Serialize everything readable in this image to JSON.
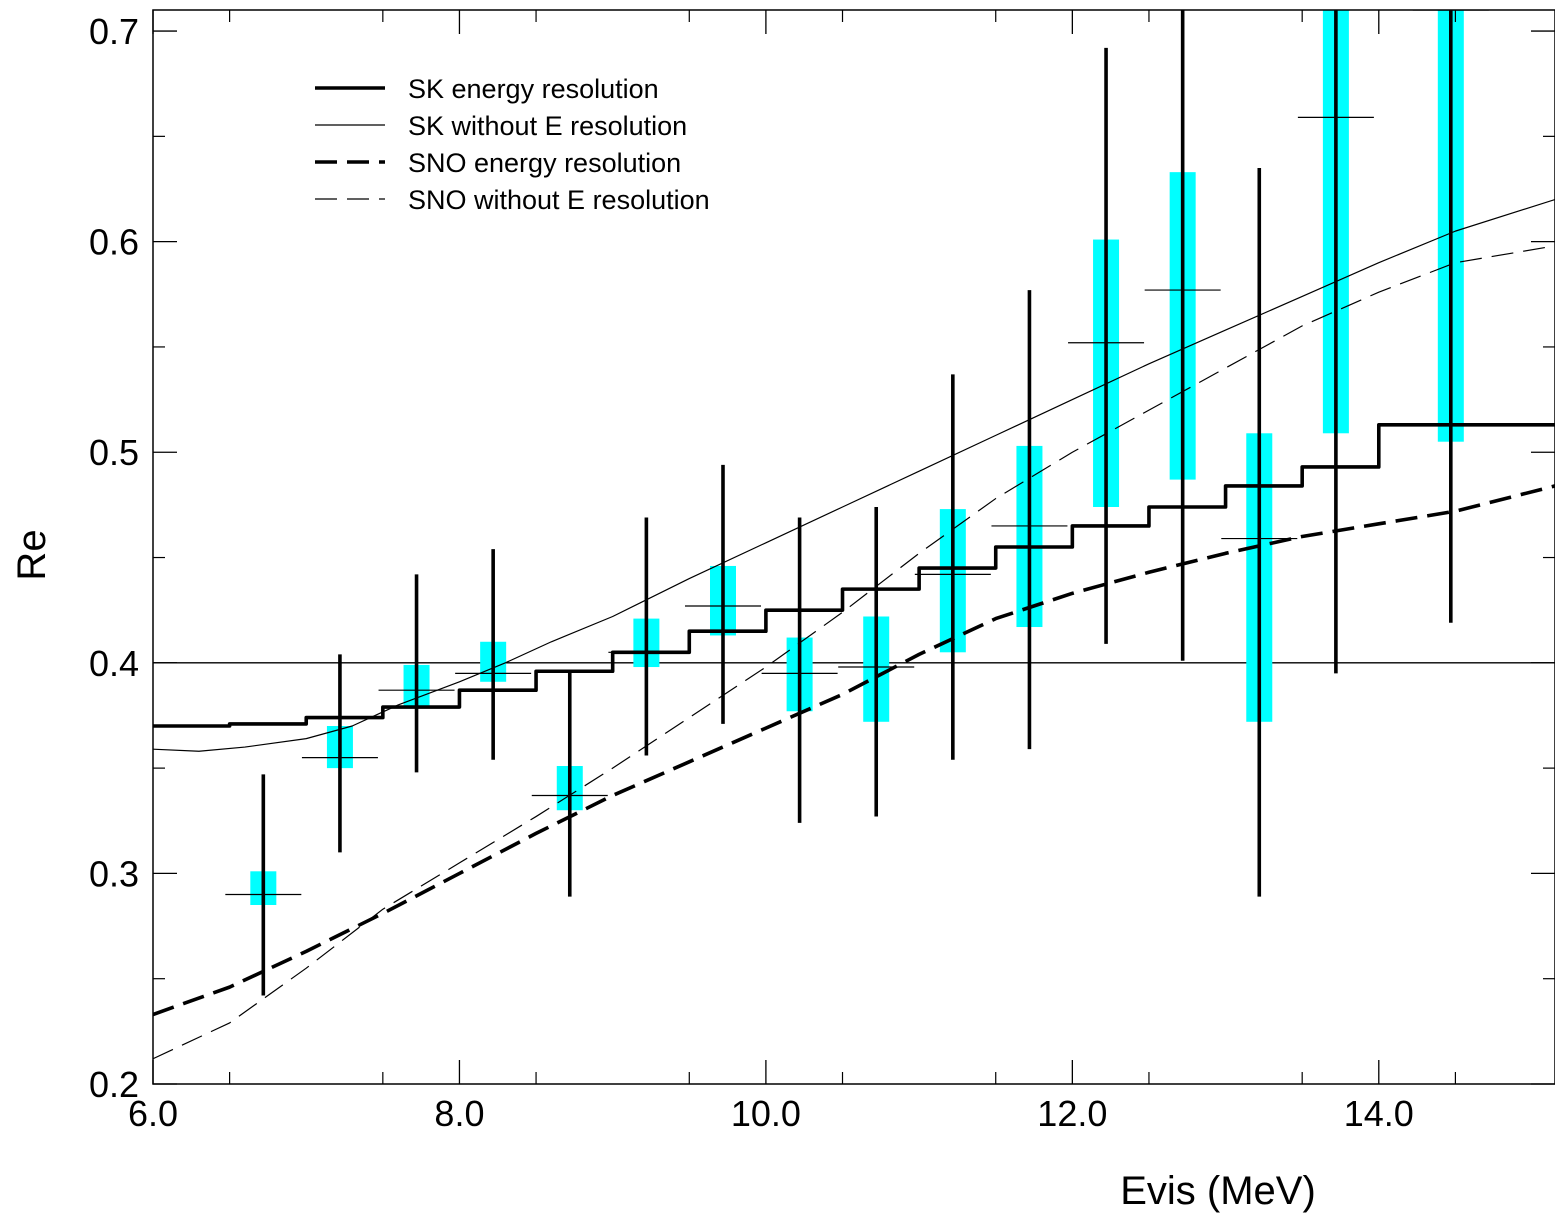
{
  "chart_data": {
    "type": "line",
    "xlabel": "Evis (MeV)",
    "ylabel": "Re",
    "xlim": [
      6.0,
      15.15
    ],
    "ylim": [
      0.2,
      0.71
    ],
    "x_ticks": [
      6.0,
      8.0,
      10.0,
      12.0,
      14.0
    ],
    "x_tick_labels": [
      "6.0",
      "8.0",
      "10.0",
      "12.0",
      "14.0"
    ],
    "y_ticks": [
      0.2,
      0.3,
      0.4,
      0.5,
      0.6,
      0.7
    ],
    "y_tick_labels": [
      "0.2",
      "0.3",
      "0.4",
      "0.5",
      "0.6",
      "0.7"
    ],
    "reference_line_y": 0.4,
    "legend_placement": "top-left",
    "series": [
      {
        "name": "SK energy resolution",
        "style": "step-thick",
        "x": [
          6.0,
          6.5,
          7.0,
          7.5,
          8.0,
          8.5,
          9.0,
          9.5,
          10.0,
          10.5,
          11.0,
          11.5,
          12.0,
          12.5,
          13.0,
          13.5,
          14.0,
          14.5
        ],
        "y": [
          0.37,
          0.371,
          0.374,
          0.379,
          0.387,
          0.396,
          0.405,
          0.415,
          0.425,
          0.435,
          0.445,
          0.455,
          0.465,
          0.474,
          0.484,
          0.493,
          0.513,
          0.513
        ],
        "x_end": 15.15
      },
      {
        "name": "SK without E resolution",
        "style": "line-thin",
        "x": [
          6.0,
          6.3,
          6.6,
          7.0,
          7.3,
          7.6,
          8.0,
          8.3,
          8.6,
          9.0,
          9.5,
          10.0,
          10.5,
          11.0,
          11.5,
          12.0,
          12.5,
          13.0,
          13.5,
          14.0,
          14.5,
          15.15
        ],
        "y": [
          0.359,
          0.358,
          0.36,
          0.364,
          0.37,
          0.38,
          0.391,
          0.4,
          0.41,
          0.422,
          0.44,
          0.457,
          0.474,
          0.491,
          0.508,
          0.525,
          0.542,
          0.558,
          0.574,
          0.59,
          0.605,
          0.62
        ]
      },
      {
        "name": "SNO energy resolution",
        "style": "dash-thick",
        "x": [
          6.0,
          6.5,
          7.0,
          7.5,
          8.0,
          8.5,
          9.0,
          9.5,
          10.0,
          10.5,
          11.0,
          11.5,
          12.0,
          12.5,
          13.0,
          13.5,
          14.0,
          14.5,
          15.15
        ],
        "y": [
          0.233,
          0.246,
          0.263,
          0.281,
          0.3,
          0.319,
          0.337,
          0.353,
          0.369,
          0.385,
          0.404,
          0.421,
          0.433,
          0.443,
          0.452,
          0.46,
          0.466,
          0.472,
          0.484
        ]
      },
      {
        "name": "SNO without E resolution",
        "style": "dash-thin",
        "x": [
          6.0,
          6.5,
          7.0,
          7.5,
          8.0,
          8.5,
          9.0,
          9.5,
          10.0,
          10.5,
          11.0,
          11.5,
          12.0,
          12.5,
          13.0,
          13.5,
          14.0,
          14.5,
          15.15
        ],
        "y": [
          0.212,
          0.229,
          0.255,
          0.283,
          0.305,
          0.327,
          0.35,
          0.374,
          0.398,
          0.424,
          0.452,
          0.478,
          0.5,
          0.52,
          0.54,
          0.56,
          0.576,
          0.59,
          0.598
        ]
      }
    ],
    "data_points": [
      {
        "x": 6.72,
        "y": 0.29,
        "stat_low": 0.242,
        "stat_high": 0.347,
        "sys_low": 0.285,
        "sys_high": 0.301
      },
      {
        "x": 7.22,
        "y": 0.355,
        "stat_low": 0.31,
        "stat_high": 0.404,
        "sys_low": 0.35,
        "sys_high": 0.37
      },
      {
        "x": 7.72,
        "y": 0.387,
        "stat_low": 0.348,
        "stat_high": 0.442,
        "sys_low": 0.379,
        "sys_high": 0.399
      },
      {
        "x": 8.22,
        "y": 0.395,
        "stat_low": 0.354,
        "stat_high": 0.454,
        "sys_low": 0.391,
        "sys_high": 0.41
      },
      {
        "x": 8.72,
        "y": 0.337,
        "stat_low": 0.289,
        "stat_high": 0.396,
        "sys_low": 0.33,
        "sys_high": 0.351
      },
      {
        "x": 9.22,
        "y": 0.405,
        "stat_low": 0.356,
        "stat_high": 0.469,
        "sys_low": 0.398,
        "sys_high": 0.421
      },
      {
        "x": 9.72,
        "y": 0.427,
        "stat_low": 0.371,
        "stat_high": 0.494,
        "sys_low": 0.413,
        "sys_high": 0.446
      },
      {
        "x": 10.22,
        "y": 0.395,
        "stat_low": 0.324,
        "stat_high": 0.469,
        "sys_low": 0.377,
        "sys_high": 0.412
      },
      {
        "x": 10.72,
        "y": 0.398,
        "stat_low": 0.327,
        "stat_high": 0.474,
        "sys_low": 0.372,
        "sys_high": 0.422
      },
      {
        "x": 11.22,
        "y": 0.442,
        "stat_low": 0.354,
        "stat_high": 0.537,
        "sys_low": 0.405,
        "sys_high": 0.473
      },
      {
        "x": 11.72,
        "y": 0.465,
        "stat_low": 0.359,
        "stat_high": 0.577,
        "sys_low": 0.417,
        "sys_high": 0.503
      },
      {
        "x": 12.22,
        "y": 0.552,
        "stat_low": 0.409,
        "stat_high": 0.692,
        "sys_low": 0.474,
        "sys_high": 0.601
      },
      {
        "x": 12.72,
        "y": 0.577,
        "stat_low": 0.401,
        "stat_high": 0.71,
        "sys_low": 0.487,
        "sys_high": 0.633
      },
      {
        "x": 13.22,
        "y": 0.459,
        "stat_low": 0.289,
        "stat_high": 0.635,
        "sys_low": 0.372,
        "sys_high": 0.509
      },
      {
        "x": 13.72,
        "y": 0.659,
        "stat_low": 0.395,
        "stat_high": 0.71,
        "sys_low": 0.509,
        "sys_high": 0.71
      },
      {
        "x": 14.47,
        "y": 0.71,
        "stat_low": 0.419,
        "stat_high": 0.71,
        "sys_low": 0.505,
        "sys_high": 0.71
      }
    ],
    "colors": {
      "curves": "#000000",
      "systematic_band": "#00ffff",
      "axes": "#000000"
    }
  }
}
